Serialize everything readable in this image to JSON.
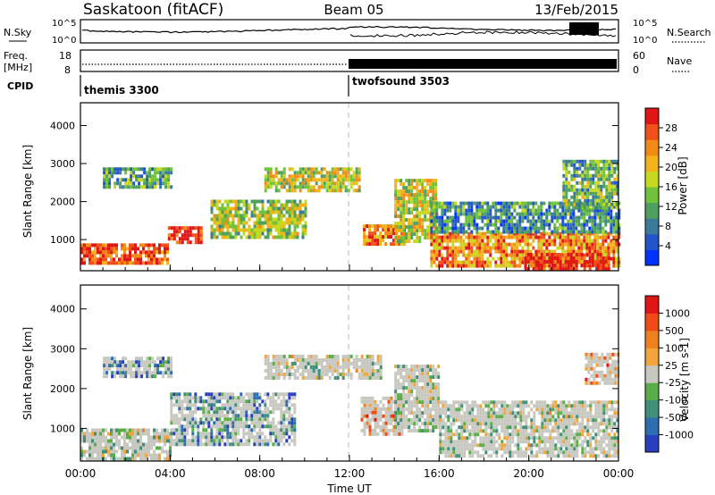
{
  "header": {
    "station": "Saskatoon (fitACF)",
    "beam": "Beam 05",
    "date": "13/Feb/2015"
  },
  "noise_panel": {
    "left_label": "N.Sky",
    "right_label": "N.Search",
    "ticks": [
      "10^5",
      "10^0"
    ],
    "right_ticks": [
      "10^5",
      "10^0"
    ]
  },
  "freq_panel": {
    "left_label_1": "Freq.",
    "left_label_2": "[MHz]",
    "left_ticks": [
      "18",
      "8"
    ],
    "right_label": "Nave",
    "right_ticks": [
      "60",
      "0"
    ]
  },
  "cpid": {
    "label": "CPID",
    "modes": [
      {
        "name": "themis 3300",
        "start_hour": 0
      },
      {
        "name": "twofsound 3503",
        "start_hour": 12
      }
    ]
  },
  "xaxis": {
    "title": "Time UT",
    "ticks": [
      "00:00",
      "04:00",
      "08:00",
      "12:00",
      "16:00",
      "20:00",
      "00:00"
    ]
  },
  "chart_data": [
    {
      "type": "heatmap",
      "title": "",
      "xlabel": "Time UT",
      "ylabel": "Slant Range [km]",
      "xlim": [
        0,
        24
      ],
      "ylim": [
        180,
        4600
      ],
      "yticks": [
        1000,
        2000,
        3000,
        4000
      ],
      "colorbar": {
        "label": "Power [dB]",
        "ticks": [
          "28",
          "24",
          "20",
          "16",
          "12",
          "8",
          "4"
        ],
        "colors": [
          "#0033ff",
          "#2255cc",
          "#3b7a9a",
          "#4fa05f",
          "#6fc23a",
          "#c8d821",
          "#f2b21a",
          "#f38a16",
          "#f0501a",
          "#e01515"
        ]
      },
      "regions": [
        {
          "t0": 0.0,
          "t1": 3.9,
          "r0": 380,
          "r1": 900,
          "level": 0.85
        },
        {
          "t0": 3.9,
          "t1": 5.4,
          "r0": 950,
          "r1": 1350,
          "level": 0.95
        },
        {
          "t0": 5.8,
          "t1": 10.0,
          "r0": 1100,
          "r1": 2050,
          "level": 0.5
        },
        {
          "t0": 1.0,
          "t1": 4.0,
          "r0": 2350,
          "r1": 2900,
          "level": 0.35
        },
        {
          "t0": 8.2,
          "t1": 12.4,
          "r0": 2300,
          "r1": 2900,
          "level": 0.55
        },
        {
          "t0": 12.6,
          "t1": 14.4,
          "r0": 900,
          "r1": 1400,
          "level": 0.8
        },
        {
          "t0": 14.0,
          "t1": 15.8,
          "r0": 1000,
          "r1": 2600,
          "level": 0.55
        },
        {
          "t0": 15.6,
          "t1": 24.0,
          "r0": 300,
          "r1": 1200,
          "level": 0.75
        },
        {
          "t0": 15.6,
          "t1": 24.0,
          "r0": 1200,
          "r1": 2000,
          "level": 0.3
        },
        {
          "t0": 19.8,
          "t1": 23.6,
          "r0": 250,
          "r1": 650,
          "level": 0.98
        },
        {
          "t0": 21.5,
          "t1": 24.0,
          "r0": 1800,
          "r1": 3100,
          "level": 0.4
        }
      ]
    },
    {
      "type": "heatmap",
      "title": "",
      "xlabel": "Time UT",
      "ylabel": "Slant Range [km]",
      "xlim": [
        0,
        24
      ],
      "ylim": [
        180,
        4600
      ],
      "yticks": [
        1000,
        2000,
        3000,
        4000
      ],
      "colorbar": {
        "label": "Velocity [m s-1]",
        "ticks": [
          "1000",
          "500",
          "100",
          "25",
          "-25",
          "-100",
          "-500",
          "-1000"
        ],
        "colors": [
          "#2a3fc0",
          "#2d6db0",
          "#3f8f7a",
          "#5aae48",
          "#c8c8c0",
          "#f2a53a",
          "#f07f1d",
          "#f04a16",
          "#e01515"
        ]
      },
      "regions": [
        {
          "t0": 0.0,
          "t1": 4.0,
          "r0": 250,
          "r1": 1000,
          "level": 0.45
        },
        {
          "t0": 4.0,
          "t1": 9.6,
          "r0": 600,
          "r1": 1900,
          "level": 0.25
        },
        {
          "t0": 8.2,
          "t1": 13.4,
          "r0": 2300,
          "r1": 2850,
          "level": 0.45
        },
        {
          "t0": 12.5,
          "t1": 14.3,
          "r0": 900,
          "r1": 1800,
          "level": 0.7
        },
        {
          "t0": 14.0,
          "t1": 16.0,
          "r0": 900,
          "r1": 2600,
          "level": 0.45
        },
        {
          "t0": 16.0,
          "t1": 24.0,
          "r0": 300,
          "r1": 1700,
          "level": 0.45
        },
        {
          "t0": 1.0,
          "t1": 4.0,
          "r0": 2300,
          "r1": 2800,
          "level": 0.25
        },
        {
          "t0": 22.5,
          "t1": 24.0,
          "r0": 2100,
          "r1": 2900,
          "level": 0.7
        }
      ]
    }
  ]
}
